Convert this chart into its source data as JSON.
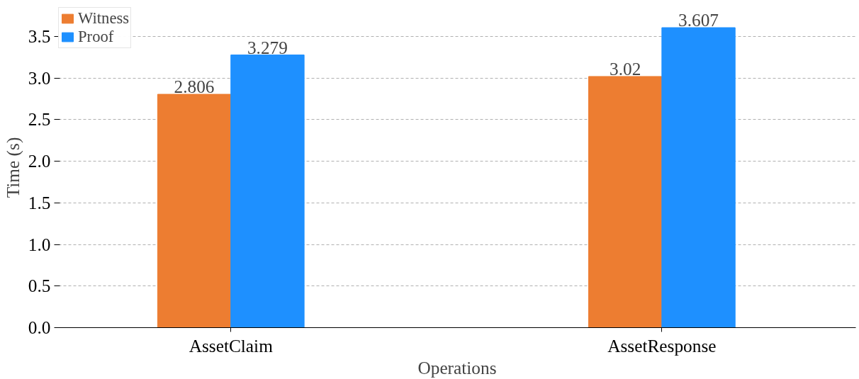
{
  "chart_data": {
    "type": "bar",
    "xlabel": "Operations",
    "ylabel": "Time (s)",
    "categories": [
      "AssetClaim",
      "AssetResponse"
    ],
    "series": [
      {
        "name": "Witness",
        "color": "#ed7d31",
        "values": [
          2.806,
          3.02
        ]
      },
      {
        "name": "Proof",
        "color": "#1e90ff",
        "values": [
          3.279,
          3.607
        ]
      }
    ],
    "data_labels": true,
    "ylim": [
      0,
      3.85
    ],
    "yticks": [
      {
        "value": 0,
        "label": "0.0"
      },
      {
        "value": 0.5,
        "label": "0.5"
      },
      {
        "value": 1,
        "label": "1.0"
      },
      {
        "value": 1.5,
        "label": "1.5"
      },
      {
        "value": 2,
        "label": "2.0"
      },
      {
        "value": 2.5,
        "label": "2.5"
      },
      {
        "value": 3,
        "label": "3.0"
      },
      {
        "value": 3.5,
        "label": "3.5"
      }
    ],
    "grid": "y",
    "legend": "top left"
  }
}
